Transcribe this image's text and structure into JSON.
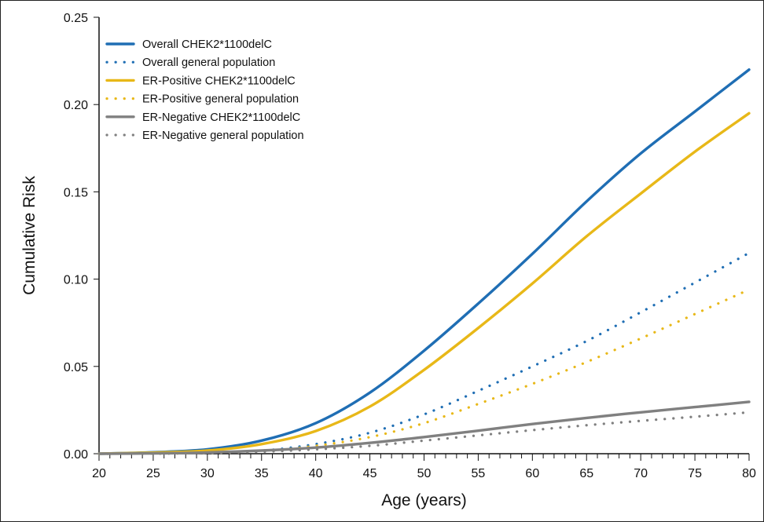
{
  "chart_data": {
    "type": "line",
    "xlabel": "Age (years)",
    "ylabel": "Cumulative Risk",
    "xlim": [
      20,
      80
    ],
    "ylim": [
      0,
      0.25
    ],
    "x_ticks": [
      "20",
      "25",
      "30",
      "35",
      "40",
      "45",
      "50",
      "55",
      "60",
      "65",
      "70",
      "75",
      "80"
    ],
    "y_ticks": [
      "0.00",
      "0.05",
      "0.10",
      "0.15",
      "0.20",
      "0.25"
    ],
    "grid": false,
    "legend_position": "top-left",
    "series": [
      {
        "name": "Overall CHEK2*1100delC",
        "color": "#1f6eb4",
        "style": "solid",
        "x": [
          20,
          25,
          30,
          35,
          40,
          45,
          50,
          55,
          60,
          65,
          70,
          75,
          80
        ],
        "y": [
          0.0,
          0.0008,
          0.0025,
          0.0075,
          0.0175,
          0.035,
          0.059,
          0.086,
          0.1145,
          0.1445,
          0.172,
          0.196,
          0.22
        ]
      },
      {
        "name": "Overall general population",
        "color": "#1f6eb4",
        "style": "dotted",
        "x": [
          20,
          25,
          30,
          35,
          40,
          45,
          50,
          55,
          60,
          65,
          70,
          75,
          80
        ],
        "y": [
          0.0,
          0.0001,
          0.0005,
          0.0017,
          0.0055,
          0.012,
          0.0225,
          0.036,
          0.05,
          0.0645,
          0.081,
          0.098,
          0.115
        ]
      },
      {
        "name": "ER-Positive CHEK2*1100delC",
        "color": "#e8b818",
        "style": "solid",
        "x": [
          20,
          25,
          30,
          35,
          40,
          45,
          50,
          55,
          60,
          65,
          70,
          75,
          80
        ],
        "y": [
          0.0,
          0.0006,
          0.0018,
          0.0055,
          0.013,
          0.027,
          0.048,
          0.072,
          0.0975,
          0.1245,
          0.149,
          0.173,
          0.195
        ]
      },
      {
        "name": "ER-Positive general population",
        "color": "#e8b818",
        "style": "dotted",
        "x": [
          20,
          25,
          30,
          35,
          40,
          45,
          50,
          55,
          60,
          65,
          70,
          75,
          80
        ],
        "y": [
          0.0,
          0.0001,
          0.0004,
          0.0014,
          0.0045,
          0.0095,
          0.0175,
          0.0285,
          0.04,
          0.0525,
          0.066,
          0.08,
          0.094
        ]
      },
      {
        "name": "ER-Negative CHEK2*1100delC",
        "color": "#808080",
        "style": "solid",
        "x": [
          20,
          25,
          30,
          35,
          40,
          45,
          50,
          55,
          60,
          65,
          70,
          75,
          80
        ],
        "y": [
          0.0,
          0.0002,
          0.0007,
          0.0018,
          0.0035,
          0.0062,
          0.0095,
          0.0132,
          0.017,
          0.0205,
          0.0237,
          0.0267,
          0.0297
        ]
      },
      {
        "name": "ER-Negative general population",
        "color": "#808080",
        "style": "dotted",
        "x": [
          20,
          25,
          30,
          35,
          40,
          45,
          50,
          55,
          60,
          65,
          70,
          75,
          80
        ],
        "y": [
          0.0,
          0.0001,
          0.0004,
          0.0011,
          0.0025,
          0.0045,
          0.0075,
          0.0105,
          0.0135,
          0.0163,
          0.0188,
          0.0212,
          0.0237
        ]
      }
    ]
  }
}
